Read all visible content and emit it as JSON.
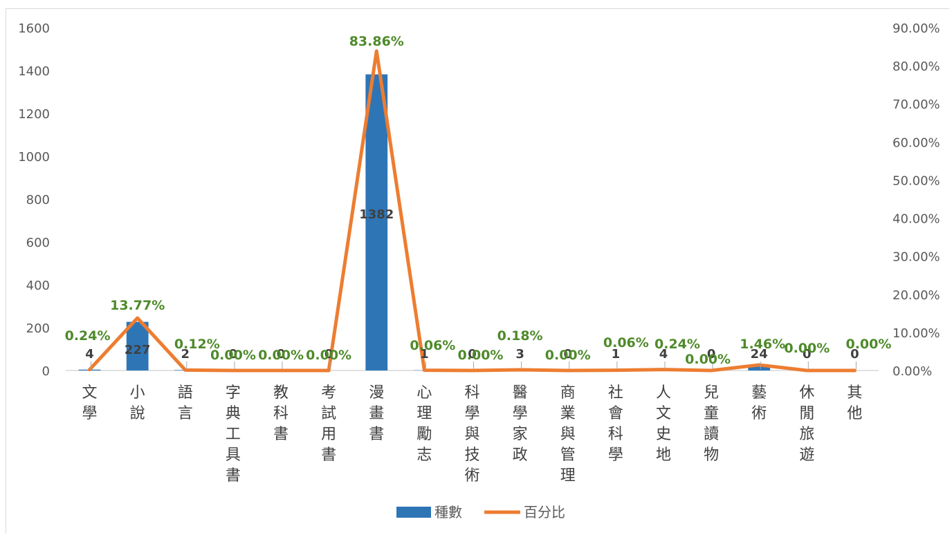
{
  "chart_data": {
    "type": "bar",
    "categories": [
      "文學",
      "小說",
      "語言",
      "字典工具書",
      "教科書",
      "考試用書",
      "漫畫書",
      "心理勵志",
      "科學與技術",
      "醫學家政",
      "商業與管理",
      "社會科學",
      "人文史地",
      "兒童讀物",
      "藝術",
      "休閒旅遊",
      "其他"
    ],
    "series": [
      {
        "name": "種數",
        "type": "bar",
        "axis": "left",
        "color": "#2e75b6",
        "values": [
          4,
          227,
          2,
          0,
          0,
          0,
          1382,
          1,
          0,
          3,
          0,
          1,
          4,
          0,
          24,
          0,
          0
        ],
        "labels": [
          "4",
          "227",
          "2",
          "0",
          "0",
          "0",
          "1382",
          "1",
          "0",
          "3",
          "0",
          "1",
          "4",
          "0",
          "24",
          "0",
          "0"
        ]
      },
      {
        "name": "百分比",
        "type": "line",
        "axis": "right",
        "color": "#ed7d31",
        "values": [
          0.24,
          13.77,
          0.12,
          0.0,
          0.0,
          0.0,
          83.86,
          0.06,
          0.0,
          0.18,
          0.0,
          0.06,
          0.24,
          0.0,
          1.46,
          0.0,
          0.0
        ],
        "labels": [
          "0.24%",
          "13.77%",
          "0.12%",
          "0.00%",
          "0.00%",
          "0.00%",
          "83.86%",
          "0.06%",
          "0.00%",
          "0.18%",
          "0.00%",
          "0.06%",
          "0.24%",
          "0.00%",
          "1.46%",
          "0.00%",
          "0.00%"
        ]
      }
    ],
    "y_left": {
      "range": [
        0,
        1600
      ],
      "ticks": [
        "0",
        "200",
        "400",
        "600",
        "800",
        "1000",
        "1200",
        "1400",
        "1600"
      ]
    },
    "y_right": {
      "range": [
        0,
        90
      ],
      "ticks": [
        "0.00%",
        "10.00%",
        "20.00%",
        "30.00%",
        "40.00%",
        "50.00%",
        "60.00%",
        "70.00%",
        "80.00%",
        "90.00%"
      ]
    },
    "grid": false,
    "legend_position": "bottom",
    "title": "",
    "xlabel": "",
    "ylabel": ""
  }
}
